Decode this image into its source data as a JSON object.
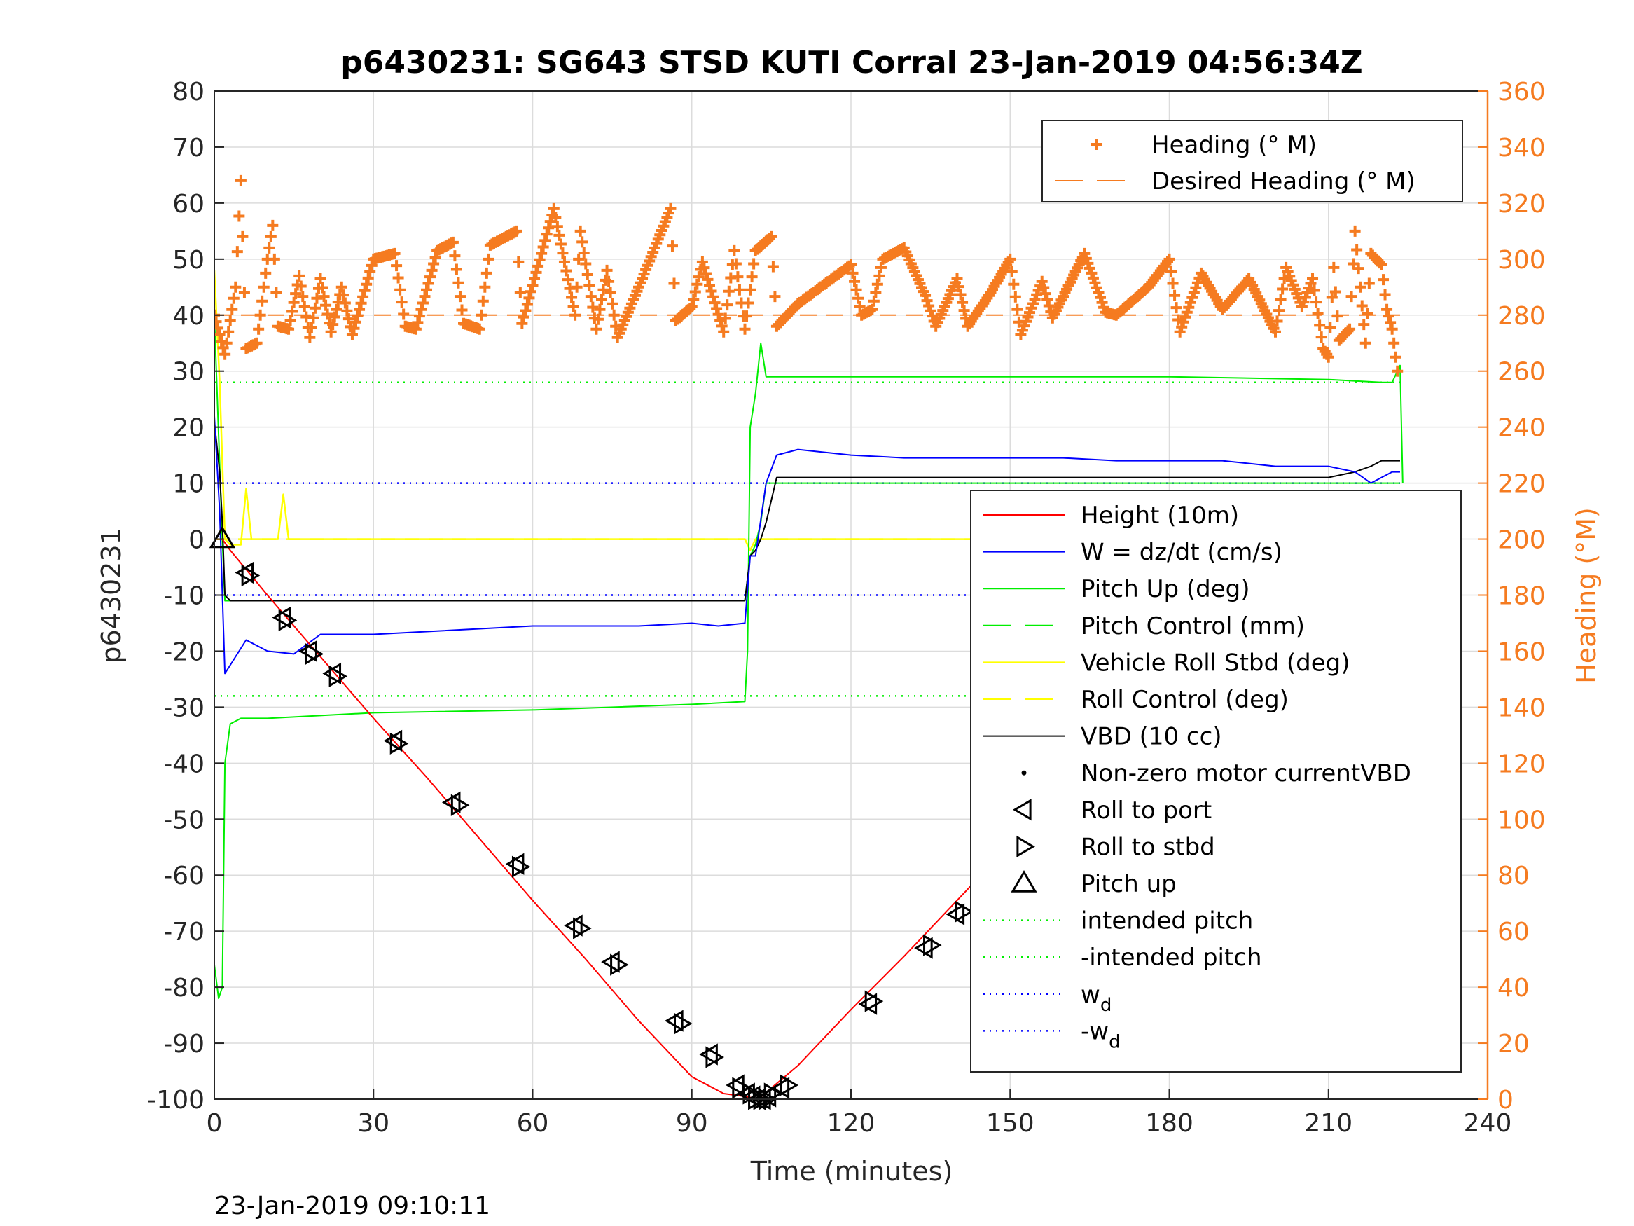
{
  "chart_data": {
    "type": "line",
    "title": "p6430231: SG643 STSD KUTI Corral 23-Jan-2019 04:56:34Z",
    "xlabel": "Time (minutes)",
    "ylabel_left": "p6430231",
    "ylabel_right": "Heading (°M)",
    "xlim": [
      0,
      240
    ],
    "ylim_left": [
      -100,
      80
    ],
    "ylim_right": [
      0,
      360
    ],
    "x_ticks": [
      "0",
      "30",
      "60",
      "90",
      "120",
      "150",
      "180",
      "210",
      "240"
    ],
    "y_left_ticks": [
      "80",
      "70",
      "60",
      "50",
      "40",
      "30",
      "20",
      "10",
      "0",
      "-10",
      "-20",
      "-30",
      "-40",
      "-50",
      "-60",
      "-70",
      "-80",
      "-90",
      "-100"
    ],
    "y_right_ticks": [
      "360",
      "340",
      "320",
      "300",
      "280",
      "260",
      "240",
      "220",
      "200",
      "180",
      "160",
      "140",
      "120",
      "100",
      "80",
      "60",
      "40",
      "20",
      "0"
    ],
    "grid": true,
    "footer_timestamp": "23-Jan-2019 09:10:11",
    "colors": {
      "height": "#ff0000",
      "w": "#0000ff",
      "pitch": "#00ee00",
      "roll": "#ffff00",
      "vbd": "#000000",
      "heading": "#f57b20",
      "axis_right": "#f57b20"
    },
    "legend_top": {
      "position": "top-right",
      "entries": [
        {
          "label": "Heading (° M)",
          "style": "plus"
        },
        {
          "label": "Desired Heading (° M)",
          "style": "dashed"
        }
      ]
    },
    "legend_main": {
      "position": "right",
      "entries": [
        {
          "label": "Height (10m)",
          "style": "solid",
          "color": "#ff0000"
        },
        {
          "label": "W = dz/dt (cm/s)",
          "style": "solid",
          "color": "#0000ff"
        },
        {
          "label": "Pitch Up (deg)",
          "style": "solid",
          "color": "#00ee00"
        },
        {
          "label": "Pitch Control (mm)",
          "style": "dashed",
          "color": "#00ee00"
        },
        {
          "label": "Vehicle Roll Stbd (deg)",
          "style": "solid",
          "color": "#ffff00"
        },
        {
          "label": "Roll Control (deg)",
          "style": "dashed",
          "color": "#ffff00"
        },
        {
          "label": "VBD (10 cc)",
          "style": "solid",
          "color": "#000000"
        },
        {
          "label": "Non-zero motor currentVBD",
          "style": "dot",
          "color": "#000000"
        },
        {
          "label": "Roll to port",
          "style": "tri-left",
          "color": "#000000"
        },
        {
          "label": "Roll to stbd",
          "style": "tri-right",
          "color": "#000000"
        },
        {
          "label": "Pitch up",
          "style": "tri-up",
          "color": "#000000"
        },
        {
          "label": "intended pitch",
          "style": "dotted",
          "color": "#00ee00"
        },
        {
          "label": "-intended pitch",
          "style": "dotted",
          "color": "#00ee00"
        },
        {
          "label": "w",
          "sub": "d",
          "style": "dotted",
          "color": "#0000ff"
        },
        {
          "label": "-w",
          "sub": "d",
          "style": "dotted",
          "color": "#0000ff"
        }
      ]
    },
    "series": [
      {
        "name": "Height (10m)",
        "axis": "left",
        "x": [
          0,
          1.5,
          3,
          10,
          20,
          30,
          40,
          50,
          60,
          70,
          80,
          90,
          96,
          100,
          102.5,
          105,
          110,
          120,
          130,
          140,
          150,
          160,
          170,
          180,
          190,
          200,
          210,
          220,
          223.5
        ],
        "y": [
          0,
          0,
          -2,
          -10,
          -21,
          -32,
          -42.5,
          -53.5,
          -64.5,
          -75,
          -86,
          -96,
          -99,
          -99.5,
          -100,
          -98,
          -94,
          -84,
          -74.5,
          -64.5,
          -54.5,
          -48,
          -41,
          -35,
          -24,
          -13,
          -7.5,
          -1.5,
          0
        ]
      },
      {
        "name": "W = dz/dt (cm/s)",
        "axis": "left",
        "x": [
          0,
          1,
          2,
          4,
          6,
          10,
          15,
          20,
          30,
          40,
          50,
          60,
          70,
          80,
          90,
          95,
          100,
          101,
          102,
          104,
          106,
          110,
          120,
          130,
          140,
          150,
          160,
          170,
          180,
          190,
          200,
          210,
          215,
          218,
          220,
          222,
          223.5
        ],
        "y": [
          22,
          5,
          -24,
          -21,
          -18,
          -20,
          -20.5,
          -17,
          -17,
          -16.5,
          -16,
          -15.5,
          -15.5,
          -15.5,
          -15,
          -15.5,
          -15,
          -3,
          -3,
          10,
          15,
          16,
          15,
          14.5,
          14.5,
          14.5,
          14.5,
          14,
          14,
          14,
          13,
          13,
          12,
          10,
          11,
          12,
          12
        ]
      },
      {
        "name": "Pitch Up (deg)",
        "axis": "left",
        "x": [
          0,
          0.8,
          1.5,
          2,
          3,
          5,
          10,
          30,
          60,
          90,
          100,
          100.5,
          101,
          102,
          103,
          104,
          105,
          120,
          150,
          180,
          210,
          220,
          222,
          223.5,
          224
        ],
        "y": [
          -76,
          -82,
          -80,
          -40,
          -33,
          -32,
          -32,
          -31,
          -30.5,
          -29.5,
          -29,
          -20,
          20,
          26,
          35,
          29,
          29,
          29,
          29,
          29,
          28.5,
          28,
          28,
          31,
          10
        ]
      },
      {
        "name": "Pitch Control (mm)",
        "axis": "left",
        "x": [
          0,
          1.5,
          2,
          100,
          101,
          102,
          103,
          104,
          223.5
        ],
        "y": [
          40,
          0,
          -11,
          -11,
          -3,
          -1,
          3,
          10,
          10
        ]
      },
      {
        "name": "Vehicle Roll Stbd (deg)",
        "axis": "left",
        "x": [
          0,
          1,
          2,
          3,
          5,
          6,
          7,
          8,
          12,
          13,
          14,
          15,
          18,
          20,
          40,
          60,
          80,
          90,
          100,
          101,
          102,
          103,
          110,
          120,
          140,
          160,
          180,
          200,
          210,
          215,
          220,
          223.5
        ],
        "y": [
          48,
          28,
          0,
          -1,
          -1,
          9,
          0,
          0,
          0,
          8,
          0,
          0,
          0,
          0,
          0,
          0,
          0,
          0,
          0,
          -2,
          0,
          0,
          0,
          0,
          0,
          0,
          0,
          0,
          0,
          -3,
          -3,
          -3
        ]
      },
      {
        "name": "Roll Control (deg)",
        "axis": "left",
        "x": [
          0,
          2,
          100,
          101,
          103,
          223.5
        ],
        "y": [
          0,
          0,
          0,
          -2,
          0,
          0
        ]
      },
      {
        "name": "VBD (10 cc)",
        "axis": "left",
        "x": [
          0,
          1,
          1.5,
          2,
          3,
          100,
          101,
          102,
          103,
          104,
          106,
          210,
          215,
          218,
          220,
          223.5
        ],
        "y": [
          21,
          12,
          3,
          -10,
          -11,
          -11,
          -3,
          -2,
          0,
          3,
          11,
          11,
          12,
          13,
          14,
          14
        ]
      },
      {
        "name": "Heading (° M)",
        "axis": "right",
        "x": [
          0,
          2,
          4,
          5,
          6,
          8,
          10,
          11,
          12,
          14,
          16,
          18,
          20,
          22,
          24,
          26,
          30,
          34,
          36,
          38,
          42,
          45,
          47,
          50,
          52,
          57,
          58,
          64,
          68,
          69,
          72,
          74,
          76,
          80,
          86,
          87,
          90,
          92,
          96,
          98,
          100,
          102,
          105,
          106,
          110,
          120,
          122,
          124,
          126,
          130,
          134,
          136,
          140,
          142,
          146,
          150,
          152,
          156,
          158,
          164,
          168,
          170,
          176,
          180,
          182,
          186,
          190,
          195,
          200,
          202,
          205,
          207,
          209,
          210,
          211,
          212,
          214,
          215,
          217,
          218,
          220,
          221,
          222,
          223
        ],
        "y": [
          280,
          266,
          290,
          328,
          268,
          270,
          300,
          312,
          276,
          275,
          294,
          272,
          293,
          274,
          290,
          273,
          300,
          302,
          276,
          275,
          303,
          306,
          277,
          275,
          305,
          310,
          277,
          318,
          280,
          310,
          275,
          296,
          272,
          290,
          318,
          278,
          283,
          299,
          274,
          303,
          275,
          303,
          308,
          276,
          284,
          298,
          280,
          282,
          300,
          304,
          287,
          276,
          293,
          276,
          287,
          300,
          273,
          292,
          279,
          302,
          281,
          280,
          290,
          300,
          274,
          295,
          282,
          293,
          274,
          297,
          283,
          293,
          268,
          265,
          297,
          271,
          275,
          310,
          270,
          302,
          298,
          282,
          275,
          260
        ]
      },
      {
        "name": "Desired Heading (° M)",
        "axis": "right",
        "x": [
          0,
          223.5
        ],
        "y": [
          280,
          280
        ]
      }
    ],
    "reference_lines": [
      {
        "name": "intended pitch",
        "axis": "left",
        "y": 28,
        "x": [
          0,
          223.5
        ]
      },
      {
        "name": "-intended pitch",
        "axis": "left",
        "y": -28,
        "x": [
          0,
          223.5
        ]
      },
      {
        "name": "w_d",
        "axis": "left",
        "y": 10,
        "x": [
          0,
          223.5
        ]
      },
      {
        "name": "-w_d",
        "axis": "left",
        "y": -10,
        "x": [
          0,
          223.5
        ]
      }
    ],
    "markers": {
      "roll_to_port": {
        "x": [
          6,
          13,
          18,
          22.5,
          34,
          45,
          57,
          68,
          75,
          87,
          93.5,
          98.5,
          100.5,
          101.5,
          102.5,
          103.5,
          104.5,
          107,
          123.5,
          134,
          140,
          152,
          157.5,
          169,
          180,
          189,
          200,
          205,
          207,
          209,
          210.5,
          212,
          213,
          215,
          217,
          219,
          221,
          223
        ],
        "y": [
          -6,
          -14,
          -20,
          -24,
          -36,
          -47,
          -58,
          -69,
          -75.5,
          -86,
          -92,
          -97.5,
          -99,
          -99.5,
          -100,
          -100,
          -99.5,
          -98,
          -83,
          -73,
          -67,
          -57.5,
          -52,
          -43,
          -34,
          -26,
          -16,
          -12,
          -10.5,
          -9,
          -8,
          -6.5,
          -6,
          -5,
          -3.5,
          -2.5,
          -1.5,
          0
        ]
      },
      "roll_to_stbd": {
        "x": [
          6.5,
          13.5,
          18.5,
          23,
          34.5,
          46,
          57.5,
          69,
          76,
          88,
          94,
          99,
          101,
          102,
          103,
          104,
          105,
          108,
          124,
          135,
          141,
          153,
          158,
          170,
          181,
          190,
          201,
          206,
          208,
          210,
          211,
          212.5,
          214,
          216,
          218,
          220,
          222,
          224
        ],
        "y": [
          -6.5,
          -14.5,
          -20.5,
          -24.5,
          -36.5,
          -47.5,
          -58.5,
          -69.5,
          -76,
          -86.5,
          -92.5,
          -98,
          -99,
          -100,
          -100,
          -100,
          -99,
          -97.5,
          -82.5,
          -72.5,
          -66.5,
          -57,
          -51.5,
          -42.5,
          -33.5,
          -25.5,
          -15.5,
          -11.5,
          -10,
          -8.5,
          -7.5,
          -6,
          -5.5,
          -4.5,
          -3,
          -2,
          -1,
          0
        ]
      },
      "pitch_up": {
        "x": [
          1.5
        ],
        "y": [
          0
        ]
      }
    }
  }
}
